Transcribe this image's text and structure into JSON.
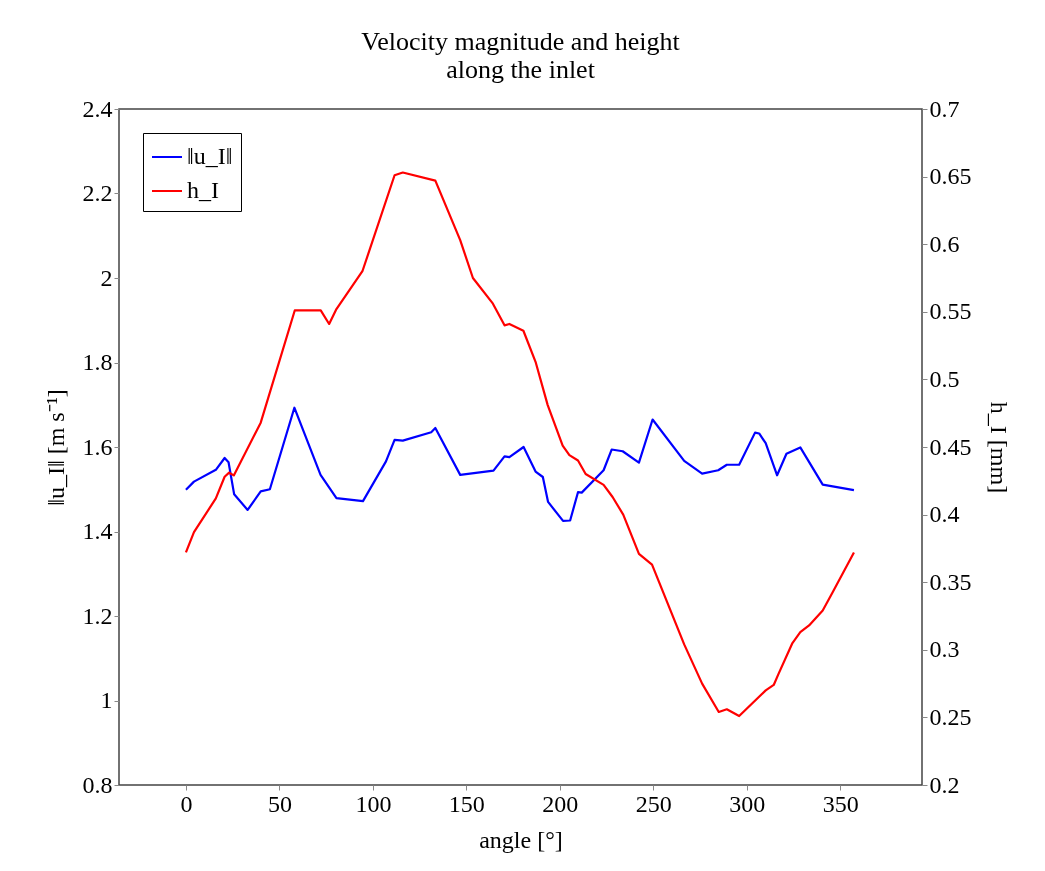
{
  "chart_data": {
    "type": "line",
    "title": "Velocity magnitude and height\nalong the inlet",
    "xlabel": "angle [°]",
    "ylabel": "‖u_I‖ [m s⁻¹]",
    "y2label": "h_I [mm]",
    "xlim": [
      -35.8,
      393.7
    ],
    "xticks": [
      0,
      50,
      100,
      150,
      200,
      250,
      300,
      350
    ],
    "ylim": [
      0.8,
      2.4
    ],
    "yticks": [
      0.8,
      1,
      1.2,
      1.4,
      1.6,
      1.8,
      2,
      2.2,
      2.4
    ],
    "y2lim": [
      0.2,
      0.7
    ],
    "y2ticks": [
      0.2,
      0.25,
      0.3,
      0.35,
      0.4,
      0.45,
      0.5,
      0.55,
      0.6,
      0.65,
      0.7
    ],
    "grid": false,
    "legend": "top left",
    "marker": "none",
    "line_style": "solid",
    "series": [
      {
        "name": "‖u_I‖",
        "color": "#0000ff",
        "axis": "y",
        "x": [
          0,
          4.3,
          16,
          20.7,
          22.8,
          25.8,
          33,
          40,
          44.9,
          58,
          72,
          80.5,
          94.7,
          107,
          111.6,
          116,
          131.2,
          133.4,
          146.7,
          164.5,
          170.4,
          173,
          180.6,
          187,
          190.9,
          193.7,
          201.7,
          205.5,
          209.7,
          211.7,
          223.4,
          227.7,
          233.6,
          242.3,
          249.6,
          266.5,
          276.1,
          284.7,
          289.3,
          295.9,
          304.4,
          306.6,
          310.1,
          316.2,
          321.2,
          328.6,
          340.6,
          357.3
        ],
        "values": [
          1.499,
          1.518,
          1.546,
          1.574,
          1.564,
          1.488,
          1.451,
          1.495,
          1.5,
          1.693,
          1.534,
          1.479,
          1.472,
          1.566,
          1.617,
          1.615,
          1.635,
          1.645,
          1.534,
          1.544,
          1.578,
          1.576,
          1.6,
          1.542,
          1.529,
          1.47,
          1.425,
          1.426,
          1.493,
          1.492,
          1.545,
          1.594,
          1.59,
          1.563,
          1.665,
          1.567,
          1.537,
          1.545,
          1.558,
          1.558,
          1.634,
          1.632,
          1.609,
          1.533,
          1.584,
          1.599,
          1.511,
          1.498
        ]
      },
      {
        "name": "h_I",
        "color": "#ff0000",
        "axis": "y2",
        "x": [
          0,
          4.3,
          16,
          20.7,
          23.1,
          25.6,
          40,
          58.2,
          72.1,
          76.6,
          80.5,
          94.4,
          111.6,
          116,
          133.4,
          146.7,
          153.5,
          164.2,
          170.4,
          173,
          180.5,
          187,
          193.5,
          201.5,
          205.1,
          209.7,
          213.8,
          223.4,
          228.2,
          233.9,
          242.3,
          249.3,
          266.5,
          276.1,
          285,
          289.3,
          295.9,
          310.1,
          314.4,
          316.9,
          324.4,
          328.6,
          333.3,
          340.6,
          345.7,
          357.3
        ],
        "values": [
          0.372,
          0.387,
          0.412,
          0.428,
          0.431,
          0.429,
          0.468,
          0.551,
          0.551,
          0.541,
          0.552,
          0.58,
          0.651,
          0.653,
          0.647,
          0.603,
          0.575,
          0.556,
          0.54,
          0.541,
          0.536,
          0.513,
          0.481,
          0.451,
          0.444,
          0.44,
          0.43,
          0.422,
          0.413,
          0.4,
          0.371,
          0.363,
          0.304,
          0.275,
          0.254,
          0.256,
          0.251,
          0.27,
          0.274,
          0.282,
          0.305,
          0.313,
          0.318,
          0.329,
          0.342,
          0.372
        ]
      }
    ]
  }
}
